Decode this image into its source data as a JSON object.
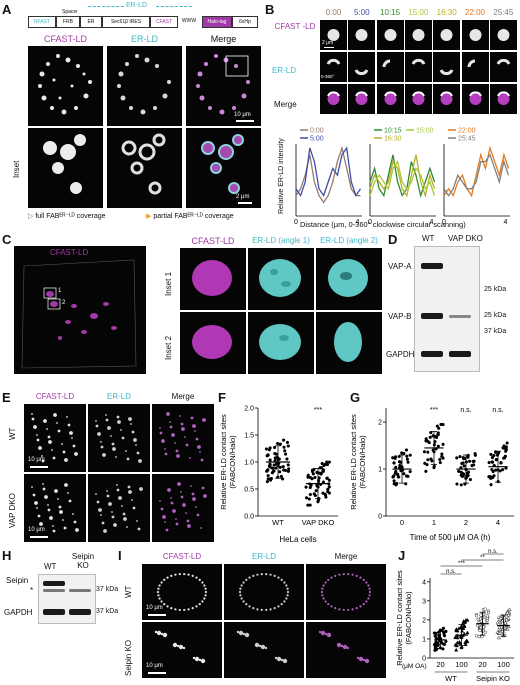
{
  "panels": {
    "A": "A",
    "B": "B",
    "C": "C",
    "D": "D",
    "E": "E",
    "F": "F",
    "G": "G",
    "H": "H",
    "I": "I",
    "J": "J"
  },
  "construct": {
    "top_label": "ER-LD",
    "blocks": [
      "NFAST",
      "FRB",
      "ER",
      "Sec61β IRES",
      "CFAST",
      "Halo-tag",
      "6xHp"
    ],
    "spacer": "Spacer",
    "wwww": "WWW"
  },
  "channels": {
    "cfast": "CFAST-LD",
    "er": "ER-LD",
    "merge": "Merge"
  },
  "panelA": {
    "inset_label": "Inset",
    "scale_main": "10 μm",
    "scale_inset": "2 μm",
    "legend_full": "full FABᴱᴿ⁻ᴸᴰ coverage",
    "legend_partial": "partial FABᴱᴿ⁻ᴸᴰ coverage",
    "colors": {
      "full_arrow": "#ffffff",
      "partial_arrow": "#f0a030"
    }
  },
  "panelB": {
    "times": [
      "0:00",
      "5:00",
      "10:15",
      "15:00",
      "16:30",
      "22:00",
      "25:45"
    ],
    "time_colors": [
      "#9a7a6a",
      "#3f4fa8",
      "#2f8a2f",
      "#a8c840",
      "#b8b020",
      "#e07a20",
      "#808080"
    ],
    "row_labels": [
      "CFAST -LD",
      "ER-LD",
      "Merge"
    ],
    "scale": "2 μm",
    "circle_label": "0-360°",
    "ylabel": "Relative ER-LD intensity",
    "xlabel": "Distance (μm, 0-360° clockwise circular scanning)",
    "ticks_x": [
      "0",
      "4"
    ],
    "legend_groups": [
      [
        "0:00",
        "5:00"
      ],
      [
        "10:15",
        "16:30",
        "15:00"
      ],
      [
        "22:00",
        "25:45"
      ]
    ]
  },
  "panelC": {
    "channel_left": "CFAST-LD",
    "col_titles": [
      "CFAST-LD",
      "ER-LD (angle 1)",
      "ER-LD (angle 2)"
    ],
    "inset_rows": [
      "Inset 1",
      "Inset 2"
    ],
    "box_labels": [
      "1",
      "2"
    ]
  },
  "panelD": {
    "lanes": [
      "WT",
      "VAP DKO"
    ],
    "rows": [
      "VAP-A",
      "VAP-B",
      "GAPDH"
    ],
    "markers": [
      "25 kDa",
      "25 kDa",
      "37 kDa"
    ]
  },
  "panelE": {
    "rows": [
      "WT",
      "VAP DKO"
    ],
    "scale": "10 μm"
  },
  "panelF": {
    "ylabel_1": "Relative ER-LD contact sites",
    "ylabel_2": "(FABCON/Halo)",
    "yticks": [
      "0.0",
      "0.5",
      "1.0",
      "1.5",
      "2.0"
    ],
    "categories": [
      "WT",
      "VAP DKO"
    ],
    "xlabel": "HeLa cells",
    "stars": "***"
  },
  "panelG": {
    "ylabel_1": "Relative ER-LD contact sites",
    "ylabel_2": "(FABCON/Halo)",
    "yticks": [
      "0",
      "1",
      "2"
    ],
    "categories": [
      "0",
      "1",
      "2",
      "4"
    ],
    "xlabel": "Time of 500 μM OA (h)",
    "annotations": [
      "",
      "***",
      "n.s.",
      "n.s."
    ]
  },
  "panelH": {
    "lanes": [
      "WT",
      "Seipin KO"
    ],
    "rows": [
      "Seipin",
      "GAPDH"
    ],
    "markers": [
      "37 kDa",
      "37 kDa"
    ],
    "asterisk": "*"
  },
  "panelI": {
    "rows": [
      "WT",
      "Seipin KO"
    ],
    "scale": "10 μm"
  },
  "panelJ": {
    "ylabel_1": "Relative ER-LD contact sites",
    "ylabel_2": "(FABCON/Halo)",
    "yticks": [
      "0",
      "1",
      "2",
      "3",
      "4"
    ],
    "categories": [
      "20",
      "100",
      "20",
      "100"
    ],
    "unit_label": "(μM OA)",
    "groups": [
      "WT",
      "Seipin KO"
    ],
    "sig": [
      "n.s.",
      "***",
      "**",
      "n.s."
    ]
  },
  "chart_data": [
    {
      "type": "line",
      "xlabel": "Distance (μm, 0-360° clockwise circular scanning)",
      "ylabel": "Relative ER-LD intensity",
      "xlim": [
        0,
        4.3
      ],
      "x": [
        0,
        0.3,
        0.6,
        0.9,
        1.2,
        1.5,
        1.8,
        2.1,
        2.4,
        2.7,
        3.0,
        3.3,
        3.6,
        3.9,
        4.2
      ],
      "panels": [
        {
          "series": [
            {
              "name": "0:00",
              "values": [
                0.3,
                0.4,
                0.6,
                0.9,
                0.5,
                0.3,
                0.2,
                0.3,
                0.5,
                0.8,
                1.0,
                0.7,
                0.4,
                0.3,
                0.3
              ]
            },
            {
              "name": "5:00",
              "values": [
                0.4,
                0.3,
                0.5,
                1.0,
                0.8,
                0.4,
                0.3,
                0.5,
                0.7,
                0.6,
                0.9,
                1.0,
                0.5,
                0.3,
                0.4
              ]
            }
          ]
        },
        {
          "series": [
            {
              "name": "10:15",
              "values": [
                0.5,
                0.7,
                0.4,
                0.3,
                0.6,
                0.9,
                0.5,
                0.3,
                0.4,
                0.8,
                0.6,
                0.3,
                0.5,
                0.7,
                0.5
              ]
            },
            {
              "name": "16:30",
              "values": [
                0.4,
                0.6,
                0.5,
                0.4,
                0.5,
                0.8,
                0.7,
                0.4,
                0.3,
                0.6,
                0.9,
                0.5,
                0.3,
                0.6,
                0.4
              ]
            },
            {
              "name": "15:00",
              "values": [
                0.3,
                0.5,
                0.6,
                0.5,
                0.4,
                0.7,
                0.8,
                0.5,
                0.4,
                0.5,
                0.7,
                0.6,
                0.4,
                0.5,
                0.3
              ]
            }
          ]
        },
        {
          "series": [
            {
              "name": "22:00",
              "values": [
                0.3,
                0.4,
                0.3,
                0.5,
                0.6,
                0.4,
                0.3,
                0.6,
                0.9,
                0.7,
                1.0,
                0.8,
                0.6,
                0.9,
                0.7
              ]
            },
            {
              "name": "25:45",
              "values": [
                0.4,
                0.3,
                0.4,
                0.6,
                0.5,
                0.4,
                0.4,
                0.5,
                0.8,
                0.8,
                0.9,
                0.7,
                0.5,
                0.8,
                0.6
              ]
            }
          ]
        }
      ]
    },
    {
      "type": "scatter",
      "ylabel": "Relative ER-LD contact sites (FABCON/Halo)",
      "xlabel": "HeLa cells",
      "categories": [
        "WT",
        "VAP DKO"
      ],
      "ylim": [
        0,
        2.0
      ],
      "means": [
        1.0,
        0.6
      ],
      "sd": [
        0.3,
        0.28
      ],
      "n_points": [
        60,
        60
      ]
    },
    {
      "type": "scatter",
      "ylabel": "Relative ER-LD contact sites (FABCON/Halo)",
      "xlabel": "Time of 500 μM OA (h)",
      "categories": [
        "0",
        "1",
        "2",
        "4"
      ],
      "ylim": [
        0,
        2.3
      ],
      "means": [
        1.0,
        1.45,
        1.0,
        1.05
      ],
      "sd": [
        0.3,
        0.35,
        0.3,
        0.33
      ],
      "n_points": [
        40,
        40,
        40,
        40
      ]
    },
    {
      "type": "scatter",
      "ylabel": "Relative ER-LD contact sites (FABCON/Halo)",
      "categories": [
        "WT 20",
        "WT 100",
        "Seipin KO 20",
        "Seipin KO 100"
      ],
      "ylim": [
        0,
        4.2
      ],
      "means": [
        0.95,
        1.2,
        1.8,
        1.7
      ],
      "sd": [
        0.45,
        0.55,
        0.6,
        0.55
      ],
      "n_points": [
        40,
        40,
        45,
        45
      ]
    }
  ]
}
